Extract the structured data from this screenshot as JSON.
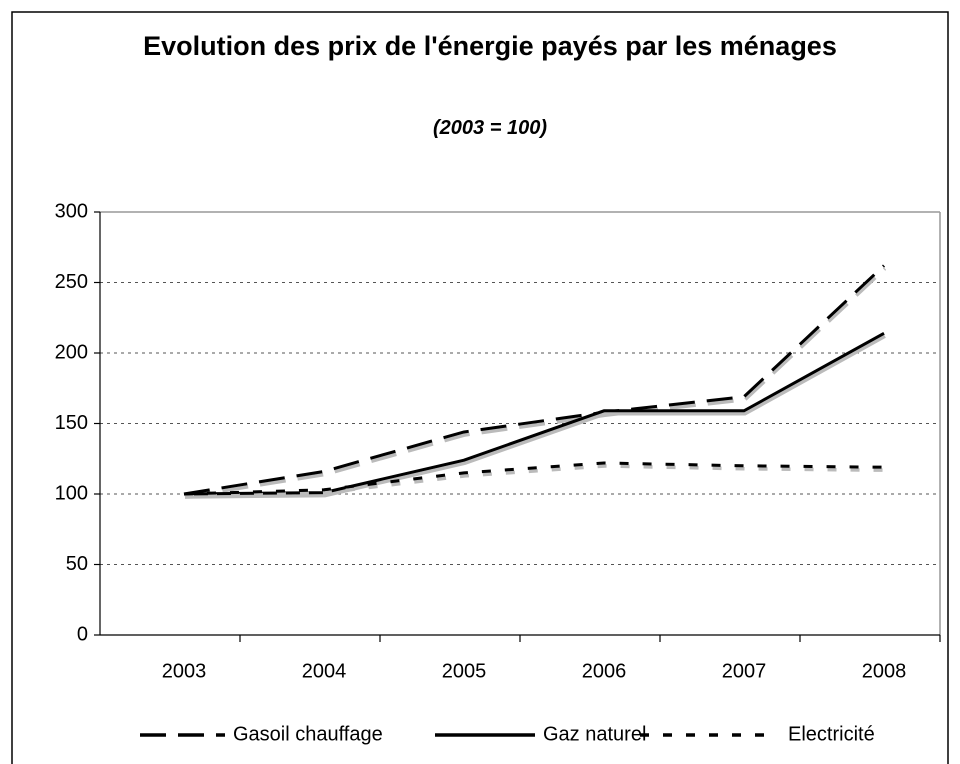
{
  "chart_data": {
    "type": "line",
    "title": "Evolution des prix de l'énergie payés par les ménages",
    "subtitle": "(2003 = 100)",
    "categories": [
      "2003",
      "2004",
      "2005",
      "2006",
      "2007",
      "2008"
    ],
    "series": [
      {
        "name": "Gasoil chauffage",
        "color": "#000000",
        "dash": "long",
        "values": [
          100,
          116,
          144,
          158,
          169,
          262
        ]
      },
      {
        "name": "Gaz naturel",
        "color": "#000000",
        "dash": "solid",
        "values": [
          100,
          101,
          124,
          159,
          159,
          214
        ]
      },
      {
        "name": "Electricité",
        "color": "#000000",
        "dash": "short",
        "values": [
          100,
          103,
          115,
          122,
          120,
          119
        ]
      }
    ],
    "ylim": [
      0,
      300
    ],
    "yticks": [
      0,
      50,
      100,
      150,
      200,
      250,
      300
    ],
    "grid": true,
    "legend": "bottom"
  }
}
